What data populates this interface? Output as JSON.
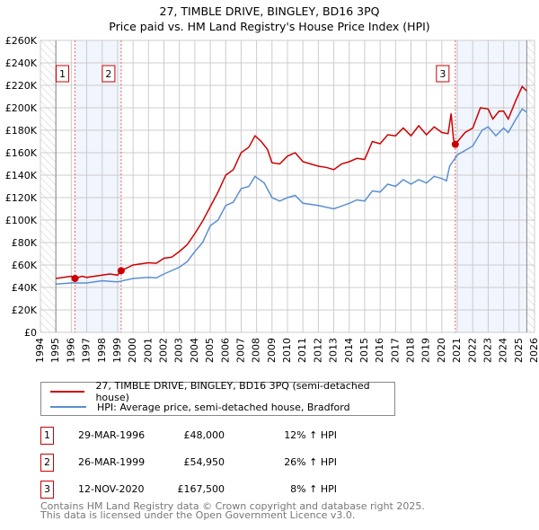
{
  "chart_data": {
    "type": "line",
    "title": "27, TIMBLE DRIVE, BINGLEY, BD16 3PQ",
    "subtitle": "Price paid vs. HM Land Registry's House Price Index (HPI)",
    "xlim": [
      1994,
      2026
    ],
    "ylim": [
      0,
      260000
    ],
    "grid": true,
    "x_ticks": [
      "1994",
      "1995",
      "1996",
      "1997",
      "1998",
      "1999",
      "2000",
      "2001",
      "2002",
      "2003",
      "2004",
      "2005",
      "2006",
      "2007",
      "2008",
      "2009",
      "2010",
      "2011",
      "2012",
      "2013",
      "2014",
      "2015",
      "2016",
      "2017",
      "2018",
      "2019",
      "2020",
      "2021",
      "2022",
      "2023",
      "2024",
      "2025",
      "2026"
    ],
    "y_ticks": [
      {
        "v": 0,
        "label": "£0"
      },
      {
        "v": 20000,
        "label": "£20K"
      },
      {
        "v": 40000,
        "label": "£40K"
      },
      {
        "v": 60000,
        "label": "£60K"
      },
      {
        "v": 80000,
        "label": "£80K"
      },
      {
        "v": 100000,
        "label": "£100K"
      },
      {
        "v": 120000,
        "label": "£120K"
      },
      {
        "v": 140000,
        "label": "£140K"
      },
      {
        "v": 160000,
        "label": "£160K"
      },
      {
        "v": 180000,
        "label": "£180K"
      },
      {
        "v": 200000,
        "label": "£200K"
      },
      {
        "v": 220000,
        "label": "£220K"
      },
      {
        "v": 240000,
        "label": "£240K"
      },
      {
        "v": 260000,
        "label": "£260K"
      }
    ],
    "legend_position": "below",
    "series": [
      {
        "name": "27, TIMBLE DRIVE, BINGLEY, BD16 3PQ (semi-detached house)",
        "color": "#cc0000",
        "x": [
          1995,
          1995.5,
          1996,
          1996.24,
          1996.7,
          1997,
          1997.5,
          1998,
          1998.5,
          1999,
          1999.23,
          2000,
          2000.5,
          2001,
          2001.5,
          2002,
          2002.5,
          2003,
          2003.5,
          2004,
          2004.5,
          2005,
          2005.5,
          2006,
          2006.5,
          2007,
          2007.5,
          2007.9,
          2008.3,
          2008.7,
          2009,
          2009.5,
          2010,
          2010.5,
          2011,
          2011.5,
          2012,
          2012.5,
          2013,
          2013.5,
          2014,
          2014.5,
          2015,
          2015.5,
          2016,
          2016.5,
          2017,
          2017.5,
          2018,
          2018.5,
          2019,
          2019.5,
          2020,
          2020.4,
          2020.6,
          2020.75,
          2020.87,
          2021.5,
          2022,
          2022.5,
          2023,
          2023.3,
          2023.7,
          2024,
          2024.3,
          2024.8,
          2025.2,
          2025.5
        ],
        "y": [
          48000,
          49000,
          50000,
          48000,
          50000,
          49000,
          50000,
          51000,
          52000,
          51000,
          54950,
          60000,
          61000,
          62000,
          61500,
          66000,
          67000,
          72000,
          78000,
          88000,
          99000,
          112000,
          125000,
          140000,
          145000,
          160000,
          165000,
          175000,
          170000,
          163000,
          151000,
          150000,
          157000,
          160000,
          152000,
          150000,
          148000,
          147000,
          145000,
          150000,
          152000,
          155000,
          154000,
          170000,
          168000,
          176000,
          175000,
          182000,
          175000,
          184000,
          176000,
          183000,
          178000,
          177000,
          195000,
          172000,
          167500,
          178000,
          182000,
          200000,
          199000,
          190000,
          197000,
          197000,
          190000,
          207000,
          219000,
          215000
        ]
      },
      {
        "name": "HPI: Average price, semi-detached house, Bradford",
        "color": "#5b8fd0",
        "x": [
          1995,
          1996,
          1997,
          1998,
          1999,
          2000,
          2001,
          2001.5,
          2002,
          2003,
          2003.5,
          2004,
          2004.5,
          2005,
          2005.5,
          2006,
          2006.5,
          2007,
          2007.5,
          2007.9,
          2008.5,
          2009,
          2009.5,
          2010,
          2010.5,
          2011,
          2012,
          2013,
          2014,
          2014.5,
          2015,
          2015.5,
          2016,
          2016.5,
          2017,
          2017.5,
          2018,
          2018.5,
          2019,
          2019.5,
          2020,
          2020.3,
          2020.5,
          2021,
          2021.5,
          2022,
          2022.6,
          2023,
          2023.5,
          2024,
          2024.3,
          2024.8,
          2025.2,
          2025.5
        ],
        "y": [
          43000,
          44000,
          44000,
          46000,
          45000,
          48000,
          49000,
          48500,
          52000,
          58000,
          63000,
          72000,
          80000,
          95000,
          100000,
          113000,
          116000,
          128000,
          130000,
          139000,
          133000,
          120000,
          117000,
          120000,
          122000,
          115000,
          113000,
          110000,
          115000,
          118000,
          117000,
          126000,
          125000,
          132000,
          130000,
          136000,
          132000,
          136000,
          133000,
          139000,
          137000,
          135000,
          148000,
          158000,
          162000,
          166000,
          180000,
          183000,
          175000,
          182000,
          178000,
          190000,
          199000,
          196000
        ]
      }
    ],
    "sales": [
      {
        "label": "1",
        "x": 1996.24,
        "y": 48000,
        "date": "29-MAR-1996",
        "price": "£48,000",
        "hpi": "12% ↑ HPI"
      },
      {
        "label": "2",
        "x": 1999.23,
        "y": 54950,
        "date": "26-MAR-1999",
        "price": "£54,950",
        "hpi": "26% ↑ HPI"
      },
      {
        "label": "3",
        "x": 2020.87,
        "y": 167500,
        "date": "12-NOV-2020",
        "price": "£167,500",
        "hpi": " 8% ↑ HPI"
      }
    ],
    "data_range": [
      1995,
      2025.5
    ]
  },
  "legend": {
    "property": "27, TIMBLE DRIVE, BINGLEY, BD16 3PQ (semi-detached house)",
    "hpi": "HPI: Average price, semi-detached house, Bradford"
  },
  "footer": {
    "line1": "Contains HM Land Registry data © Crown copyright and database right 2025.",
    "line2": "This data is licensed under the Open Government Licence v3.0."
  }
}
